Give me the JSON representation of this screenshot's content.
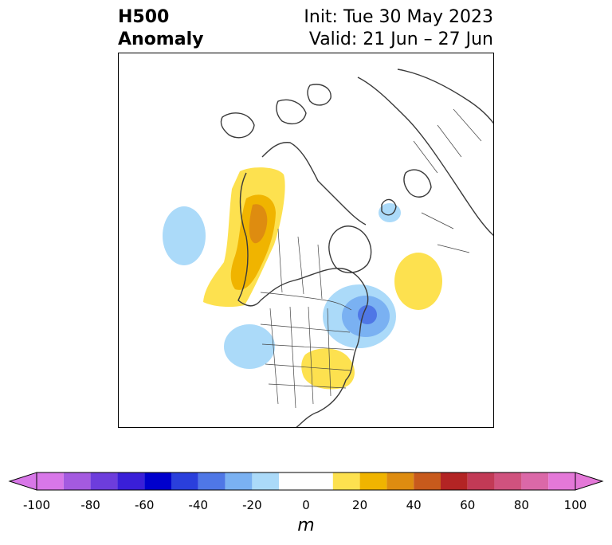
{
  "title": {
    "left_line1": "H500",
    "left_line2": "Anomaly",
    "right_line1": "Init: Tue 30 May 2023",
    "right_line2": "Valid: 21 Jun – 27 Jun"
  },
  "colorbar": {
    "units": "m",
    "ticks": [
      "-100",
      "-80",
      "-60",
      "-40",
      "-20",
      "0",
      "20",
      "40",
      "60",
      "80",
      "100"
    ],
    "bins": [
      {
        "lo": -100,
        "hi": -90,
        "color": "#d877e8"
      },
      {
        "lo": -90,
        "hi": -80,
        "color": "#a45ae0"
      },
      {
        "lo": -80,
        "hi": -70,
        "color": "#6d3ddc"
      },
      {
        "lo": -70,
        "hi": -60,
        "color": "#3a1fd8"
      },
      {
        "lo": -60,
        "hi": -50,
        "color": "#0000cd"
      },
      {
        "lo": -50,
        "hi": -40,
        "color": "#2a3fdc"
      },
      {
        "lo": -40,
        "hi": -30,
        "color": "#4f77e6"
      },
      {
        "lo": -30,
        "hi": -20,
        "color": "#7ab1f2"
      },
      {
        "lo": -20,
        "hi": -10,
        "color": "#abdaf9"
      },
      {
        "lo": -10,
        "hi": 10,
        "color": "#ffffff"
      },
      {
        "lo": 10,
        "hi": 20,
        "color": "#fde14f"
      },
      {
        "lo": 20,
        "hi": 30,
        "color": "#f0b400"
      },
      {
        "lo": 30,
        "hi": 40,
        "color": "#de8c10"
      },
      {
        "lo": 40,
        "hi": 50,
        "color": "#c85a1c"
      },
      {
        "lo": 50,
        "hi": 60,
        "color": "#b32424"
      },
      {
        "lo": 60,
        "hi": 70,
        "color": "#c23a56"
      },
      {
        "lo": 70,
        "hi": 80,
        "color": "#d0527e"
      },
      {
        "lo": 80,
        "hi": 90,
        "color": "#db68a8"
      },
      {
        "lo": 90,
        "hi": 100,
        "color": "#e478d8"
      }
    ],
    "under_color": "#d877e8",
    "over_color": "#e478d8"
  },
  "anomaly_features": [
    {
      "region": "north-pacific",
      "sign": "negative",
      "peak_m": -20
    },
    {
      "region": "western-north-america",
      "sign": "positive",
      "peak_m": 40
    },
    {
      "region": "southwestern-us",
      "sign": "negative",
      "peak_m": -20
    },
    {
      "region": "great-lakes-ohio-valley",
      "sign": "positive",
      "peak_m": 20
    },
    {
      "region": "hudson-bay-labrador",
      "sign": "negative",
      "peak_m": -50
    },
    {
      "region": "north-atlantic",
      "sign": "positive",
      "peak_m": 20
    },
    {
      "region": "northern-europe",
      "sign": "negative",
      "peak_m": -20
    }
  ],
  "colors": {
    "coastline": "#3a3a3a",
    "border": "#444444"
  }
}
